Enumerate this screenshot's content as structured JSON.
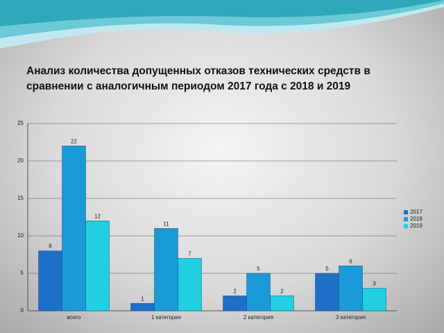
{
  "chart_data": {
    "type": "bar",
    "title": "Анализ количества допущенных отказов технических средств в сравнении с аналогичным периодом  2017  года с 2018 и 2019",
    "categories": [
      "всего",
      "1 категория",
      "2 категория",
      "3 категория"
    ],
    "series": [
      {
        "name": "2017",
        "color": "#1f6fc8",
        "values": [
          8,
          1,
          2,
          5
        ]
      },
      {
        "name": "2018",
        "color": "#1b9ad8",
        "values": [
          22,
          11,
          5,
          6
        ]
      },
      {
        "name": "2019",
        "color": "#22cfe0",
        "values": [
          12,
          7,
          2,
          3
        ]
      }
    ],
    "ylim": [
      0,
      25
    ],
    "yticks": [
      0,
      5,
      10,
      15,
      20,
      25
    ],
    "grid": true,
    "legend": "right"
  }
}
